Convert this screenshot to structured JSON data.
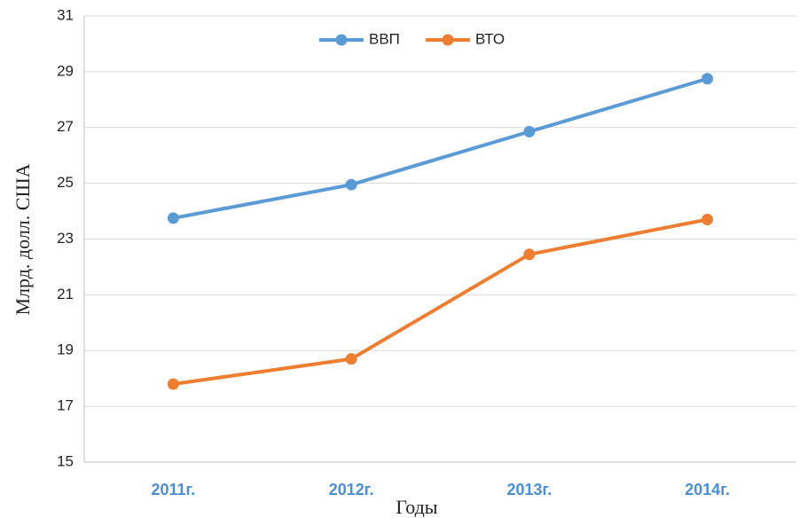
{
  "chart_data": {
    "type": "line",
    "categories": [
      "2011г.",
      "2012г.",
      "2013г.",
      "2014г."
    ],
    "series": [
      {
        "name": "ВВП",
        "color": "#5b9bd5",
        "values": [
          23.75,
          24.95,
          26.85,
          28.75
        ]
      },
      {
        "name": "ВТО",
        "color": "#ed7d31",
        "values": [
          17.8,
          18.7,
          22.45,
          23.7
        ]
      }
    ],
    "xlabel": "Годы",
    "ylabel": "Млрд. долл. США",
    "ylim": [
      15,
      31
    ],
    "yticks": [
      15,
      17,
      19,
      21,
      23,
      25,
      27,
      29,
      31
    ],
    "grid": true,
    "legend": "top"
  }
}
